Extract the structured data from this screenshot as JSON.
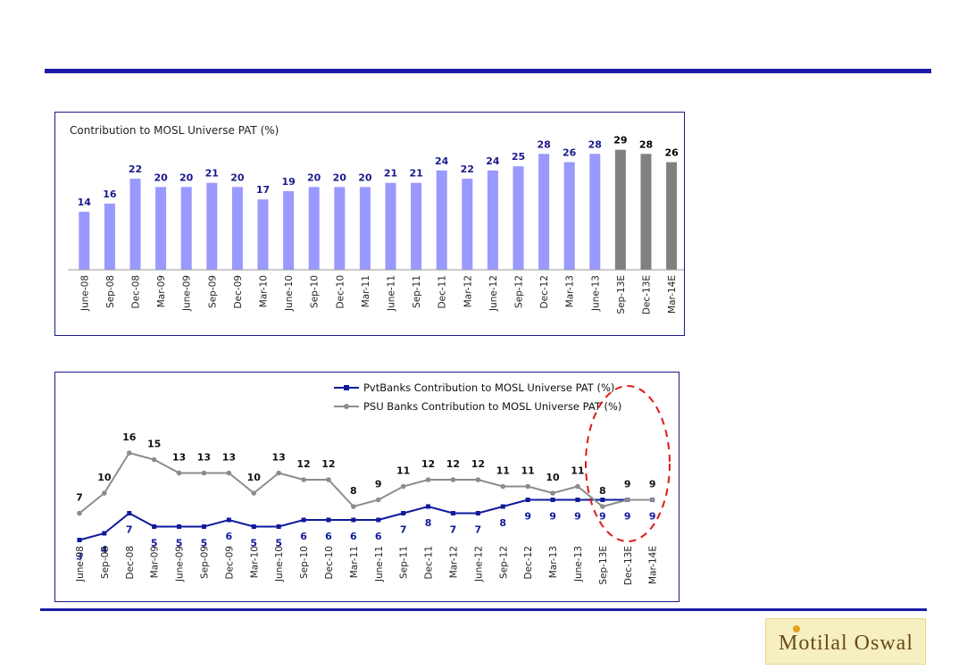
{
  "logo": {
    "text": "Motilal Oswal"
  },
  "chart_data": [
    {
      "type": "bar",
      "title": "Contribution to MOSL Universe PAT (%)",
      "categories": [
        "June-08",
        "Sep-08",
        "Dec-08",
        "Mar-09",
        "June-09",
        "Sep-09",
        "Dec-09",
        "Mar-10",
        "June-10",
        "Sep-10",
        "Dec-10",
        "Mar-11",
        "June-11",
        "Sep-11",
        "Dec-11",
        "Mar-12",
        "June-12",
        "Sep-12",
        "Dec-12",
        "Mar-13",
        "June-13",
        "Sep-13E",
        "Dec-13E",
        "Mar-14E"
      ],
      "values": [
        14,
        16,
        22,
        20,
        20,
        21,
        20,
        17,
        19,
        20,
        20,
        20,
        21,
        21,
        24,
        22,
        24,
        25,
        28,
        26,
        28,
        29,
        28,
        26
      ],
      "estimated": [
        false,
        false,
        false,
        false,
        false,
        false,
        false,
        false,
        false,
        false,
        false,
        false,
        false,
        false,
        false,
        false,
        false,
        false,
        false,
        false,
        false,
        true,
        true,
        true
      ],
      "ylim": [
        0,
        30
      ],
      "colors": {
        "actual": "#9999ff",
        "estimate": "#808080",
        "actual_label": "#1a1a8c",
        "estimate_label": "#000000"
      }
    },
    {
      "type": "line",
      "categories": [
        "June-08",
        "Sep-08",
        "Dec-08",
        "Mar-09",
        "June-09",
        "Sep-09",
        "Dec-09",
        "Mar-10",
        "June-10",
        "Sep-10",
        "Dec-10",
        "Mar-11",
        "June-11",
        "Sep-11",
        "Dec-11",
        "Mar-12",
        "June-12",
        "Sep-12",
        "Dec-12",
        "Mar-13",
        "June-13",
        "Sep-13E",
        "Dec-13E",
        "Mar-14E"
      ],
      "series": [
        {
          "name": "PvtBanks Contribution to MOSL Universe PAT (%)",
          "color": "#0f1a9c",
          "marker": "square",
          "label_position": "below",
          "values": [
            3,
            4,
            7,
            5,
            5,
            5,
            6,
            5,
            5,
            6,
            6,
            6,
            6,
            7,
            8,
            7,
            7,
            8,
            9,
            9,
            9,
            9,
            9,
            9
          ]
        },
        {
          "name": "PSU Banks Contribution to MOSL Universe PAT (%)",
          "color": "#8c8c8c",
          "marker": "circle",
          "label_position": "above",
          "values": [
            7,
            10,
            16,
            15,
            13,
            13,
            13,
            10,
            13,
            12,
            12,
            8,
            9,
            11,
            12,
            12,
            12,
            11,
            11,
            10,
            11,
            8,
            9,
            9
          ]
        }
      ],
      "ylim": [
        0,
        18
      ],
      "legend": "top-right",
      "annotation": "dashed red ellipse around Sep-13E to Mar-14E"
    }
  ]
}
